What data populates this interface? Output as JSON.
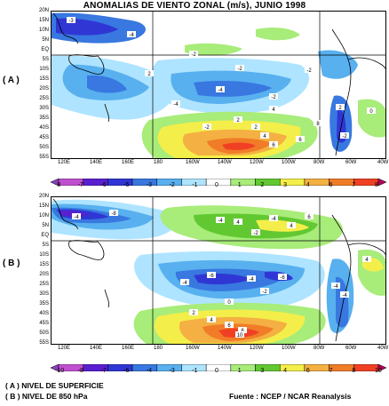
{
  "title": "ANOMALIAS DE VIENTO ZONAL (m/s), JUNIO 1998",
  "panels": [
    {
      "label": "( A )",
      "colorbar_values": [
        "-8",
        "-7",
        "-6",
        "-5",
        "-3",
        "-2",
        "-1",
        "0",
        "1",
        "2",
        "3",
        "4",
        "6",
        "7",
        "8"
      ],
      "contour_labels": [
        "-3",
        "-4",
        "-2",
        "-2",
        "-2",
        "-4",
        "-2",
        "2",
        "2",
        "4",
        "6",
        "6",
        "8",
        "4",
        "2",
        "-2",
        "-4",
        "-2",
        "0",
        "2"
      ]
    },
    {
      "label": "( B )",
      "colorbar_values": [
        "-10",
        "-8",
        "-7",
        "-6",
        "-4",
        "-3",
        "-1",
        "0",
        "1",
        "3",
        "4",
        "6",
        "7",
        "8",
        "10"
      ],
      "contour_labels": [
        "-8",
        "-4",
        "-4",
        "-4",
        "-2",
        "4",
        "4",
        "6",
        "-6",
        "-4",
        "-6",
        "-4",
        "0",
        "-2",
        "-4",
        "2",
        "4",
        "6",
        "8",
        "10",
        "4",
        "-4"
      ]
    }
  ],
  "lat_labels": [
    "20N",
    "15N",
    "10N",
    "5N",
    "EQ",
    "5S",
    "10S",
    "15S",
    "20S",
    "25S",
    "30S",
    "35S",
    "40S",
    "45S",
    "50S",
    "55S"
  ],
  "lon_labels": [
    "120E",
    "140E",
    "160E",
    "180",
    "160W",
    "140W",
    "120W",
    "100W",
    "80W",
    "60W",
    "40W"
  ],
  "footer": {
    "line_a": "( A ) NIVEL DE SUPERFICIE",
    "line_b": "( B ) NIVEL DE 850 hPa",
    "source": "Fuente : NCEP / NCAR Reanalysis"
  },
  "colors": {
    "scale": [
      "#8a3fbf",
      "#c050d0",
      "#5a1fd0",
      "#3036d4",
      "#3878e0",
      "#58b0ef",
      "#aee4ff",
      "#ffffff",
      "#a8ec7a",
      "#62c832",
      "#f4ee4a",
      "#f4b042",
      "#f07c28",
      "#f04024",
      "#b8005a"
    ]
  }
}
